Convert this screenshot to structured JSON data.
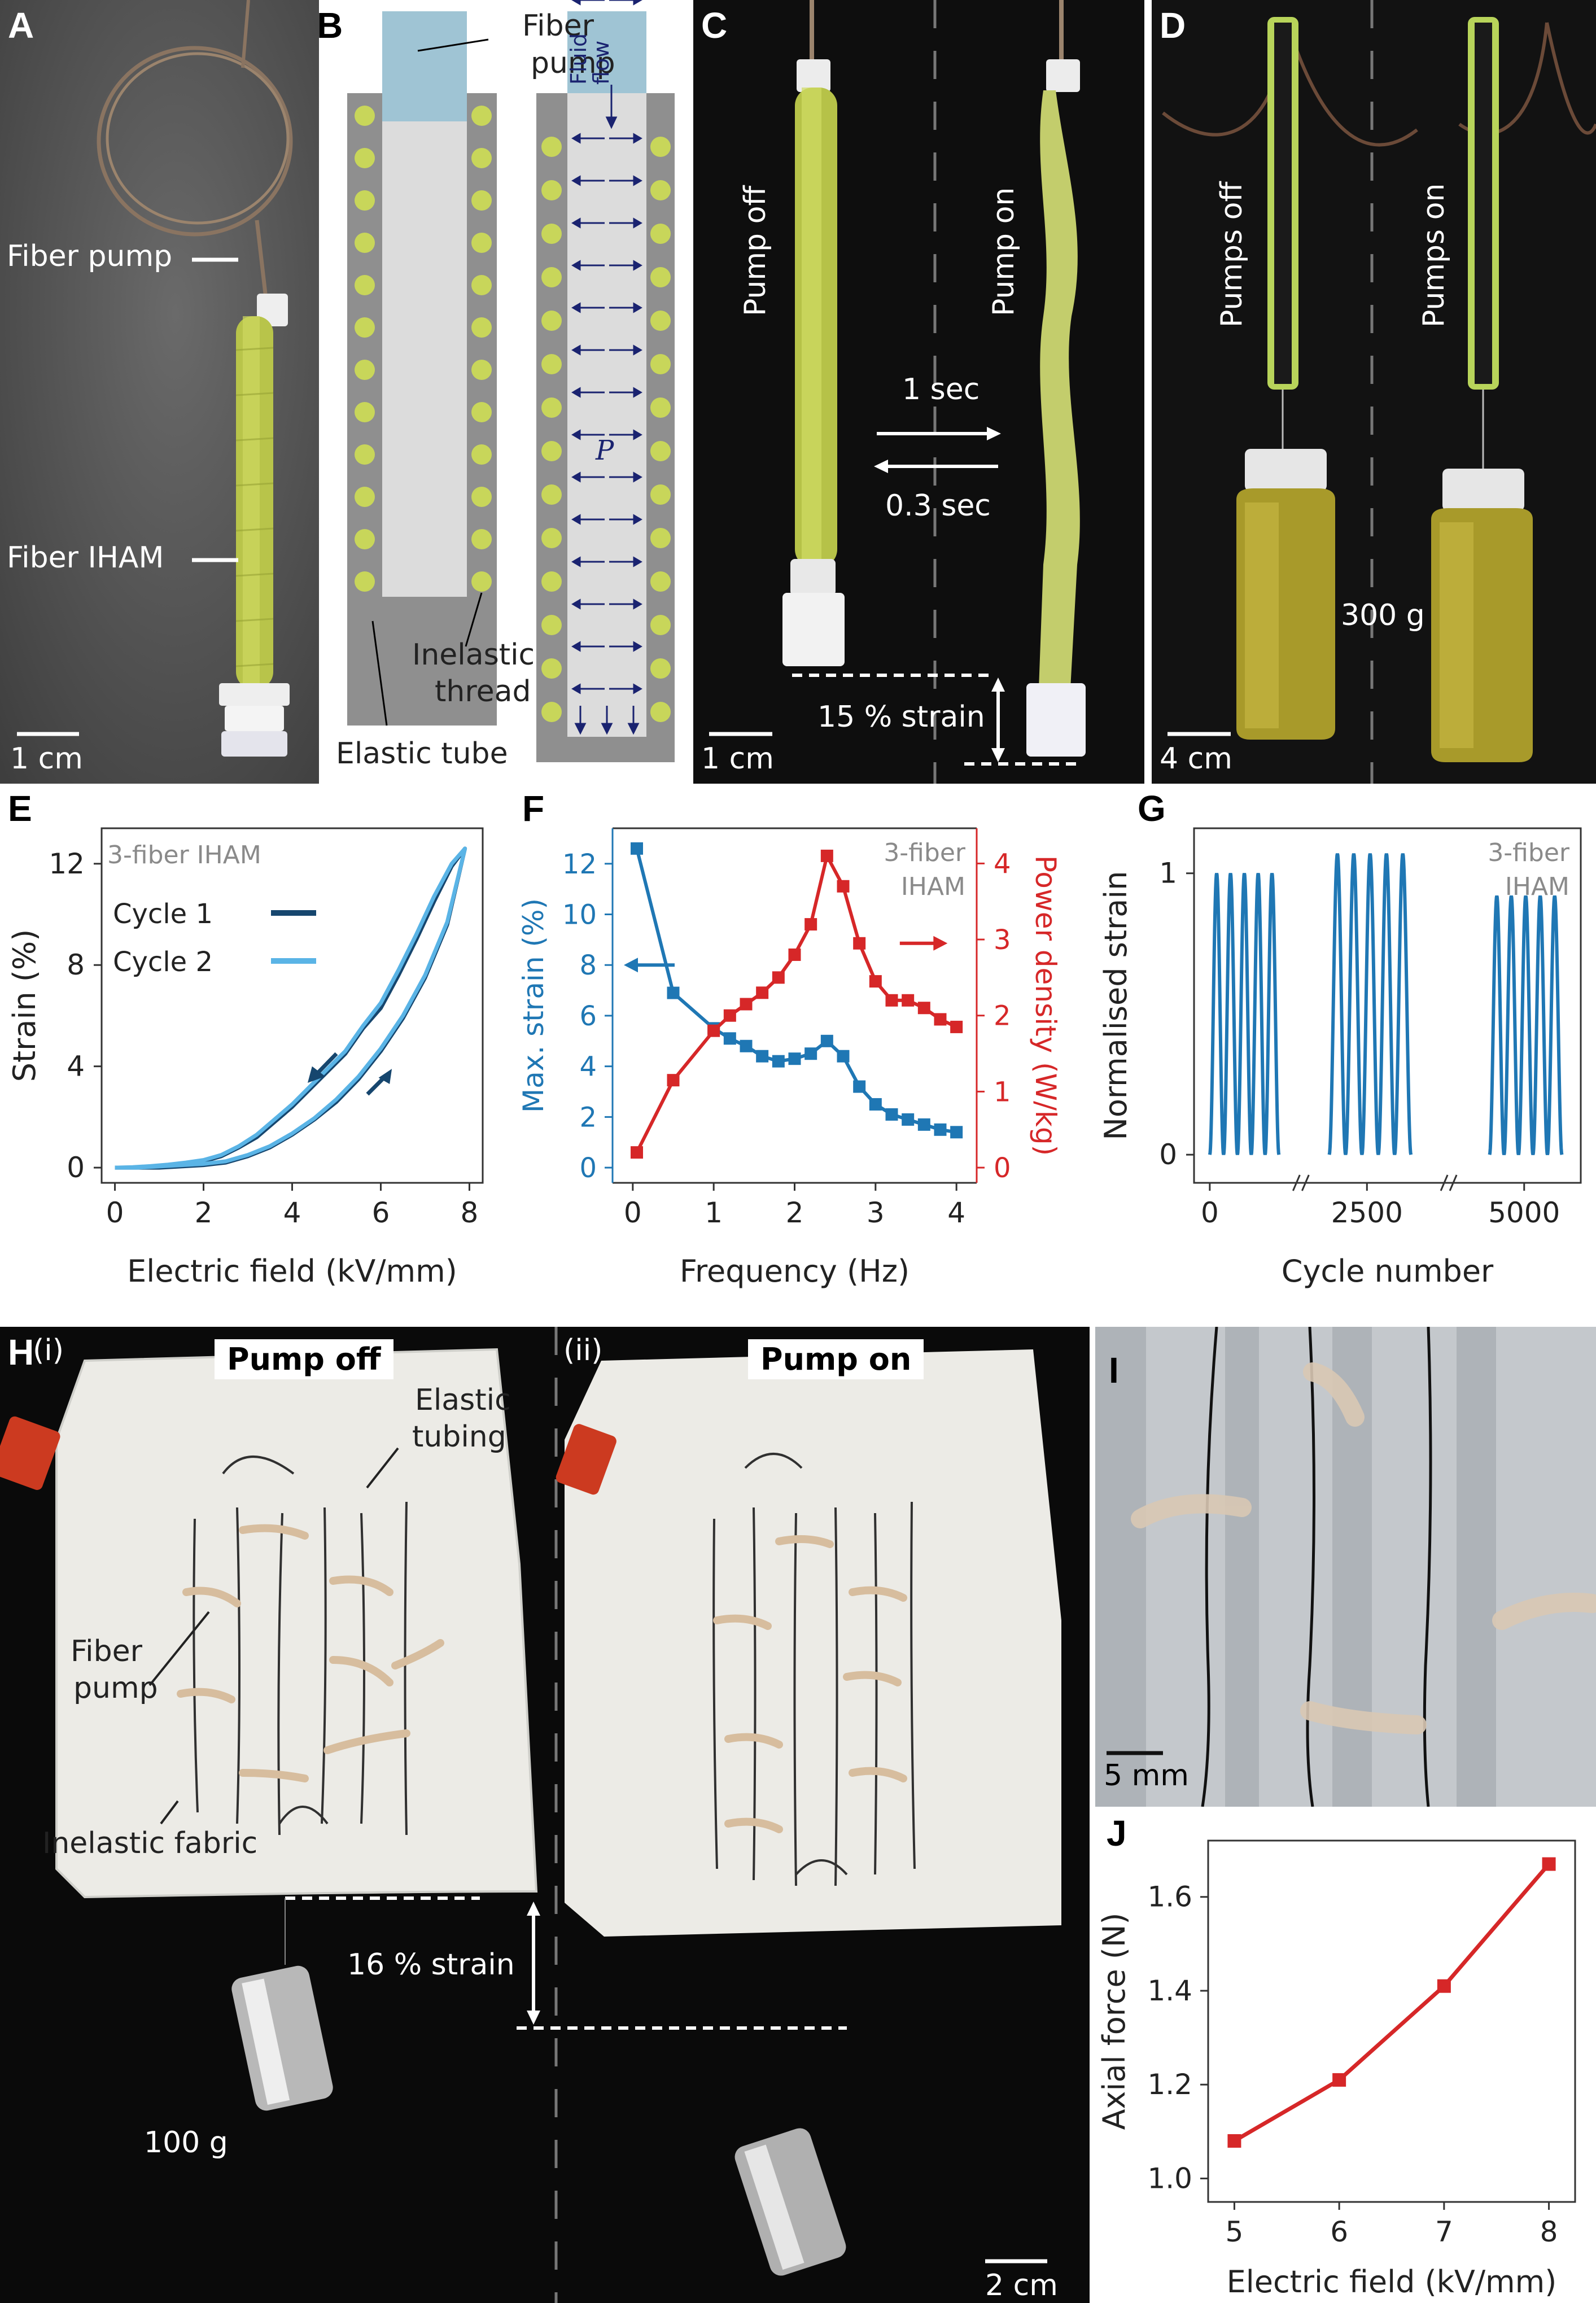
{
  "panels": {
    "A": {
      "label": "A",
      "fiber_pump": "Fiber pump",
      "fiber_iham": "Fiber IHAM",
      "scale": "1 cm"
    },
    "B": {
      "label": "B",
      "fiber_pump": [
        "Fiber",
        "pump"
      ],
      "fluid_flow": [
        "Fluid",
        "flow"
      ],
      "pressure": "P",
      "inelastic_thread": [
        "Inelastic",
        "thread"
      ],
      "elastic_tube": "Elastic tube"
    },
    "C": {
      "label": "C",
      "pump_off": "Pump off",
      "pump_on": "Pump on",
      "time_on": "1 sec",
      "time_off": "0.3 sec",
      "strain": "15 % strain",
      "scale": "1 cm"
    },
    "D": {
      "label": "D",
      "pumps_off": "Pumps off",
      "pumps_on": "Pumps on",
      "mass": "300 g",
      "scale": "4 cm"
    },
    "H": {
      "label": "H",
      "sub_i": "(i)",
      "sub_ii": "(ii)",
      "pump_off": "Pump off",
      "pump_on": "Pump on",
      "elastic_tubing": [
        "Elastic",
        "tubing"
      ],
      "fiber_pump": [
        "Fiber",
        "pump"
      ],
      "inelastic_fabric": "Inelastic fabric",
      "strain": "16 % strain",
      "mass": "100 g",
      "scale": "2 cm"
    },
    "I": {
      "label": "I",
      "scale": "5 mm"
    }
  },
  "colors": {
    "fiber": "#c8d65a",
    "tube_gray": "#8f8f8f",
    "fluid": "#dcdcdc",
    "pump_blue": "#9fc4d4",
    "arrow_navy": "#1a2370",
    "strain_blue": "#1f77b4",
    "power_red": "#d62728",
    "dark_navy": "#16466e",
    "light_blue": "#5ab4e6",
    "label_gray": "#8a8a8a"
  },
  "chart_data": [
    {
      "id": "E",
      "label": "E",
      "type": "line",
      "annotation": "3-fiber IHAM",
      "xlabel": "Electric field (kV/mm)",
      "ylabel": "Strain (%)",
      "xlim": [
        0,
        8
      ],
      "ylim": [
        0,
        13
      ],
      "xticks": [
        0,
        2,
        4,
        6,
        8
      ],
      "yticks": [
        0,
        4,
        8,
        12
      ],
      "series": [
        {
          "name": "Cycle 1",
          "color": "#16466e",
          "x": [
            0,
            0.5,
            1,
            1.5,
            2,
            2.5,
            3,
            3.5,
            4,
            4.5,
            5,
            5.5,
            6,
            6.5,
            7,
            7.5,
            7.9,
            7.6,
            7.2,
            6.8,
            6.4,
            6,
            5.6,
            5.2,
            4.8,
            4.4,
            4,
            3.6,
            3.2,
            2.8,
            2.4,
            2,
            1.6,
            1.2,
            0.8,
            0.4,
            0
          ],
          "y": [
            0,
            0,
            0,
            0.05,
            0.1,
            0.2,
            0.45,
            0.8,
            1.3,
            1.9,
            2.6,
            3.5,
            4.6,
            5.9,
            7.5,
            9.6,
            12.6,
            11.9,
            10.5,
            9.0,
            7.6,
            6.3,
            5.5,
            4.5,
            3.8,
            3.1,
            2.4,
            1.8,
            1.2,
            0.8,
            0.45,
            0.25,
            0.15,
            0.1,
            0.05,
            0,
            0
          ]
        },
        {
          "name": "Cycle 2",
          "color": "#5ab4e6",
          "x": [
            0,
            0.5,
            1,
            1.5,
            2,
            2.5,
            3,
            3.5,
            4,
            4.5,
            5,
            5.5,
            6,
            6.5,
            7,
            7.5,
            7.9,
            7.6,
            7.2,
            6.8,
            6.4,
            6,
            5.6,
            5.2,
            4.8,
            4.4,
            4,
            3.6,
            3.2,
            2.8,
            2.4,
            2,
            1.6,
            1.2,
            0.8,
            0.4,
            0
          ],
          "y": [
            0,
            0,
            0.05,
            0.1,
            0.15,
            0.25,
            0.5,
            0.85,
            1.35,
            1.95,
            2.7,
            3.6,
            4.7,
            6.0,
            7.6,
            9.7,
            12.6,
            12.0,
            10.7,
            9.2,
            7.8,
            6.5,
            5.6,
            4.6,
            3.9,
            3.2,
            2.5,
            1.9,
            1.3,
            0.85,
            0.5,
            0.3,
            0.2,
            0.12,
            0.06,
            0.02,
            0
          ]
        }
      ]
    },
    {
      "id": "F",
      "label": "F",
      "type": "line",
      "annotation": [
        "3-fiber",
        "IHAM"
      ],
      "xlabel": "Frequency (Hz)",
      "ylabel_left": "Max. strain (%)",
      "ylabel_right": "Power density (W/kg)",
      "xlim": [
        -0.25,
        4.25
      ],
      "ylim_left": [
        0,
        13
      ],
      "ylim_right": [
        0,
        4.33
      ],
      "xticks": [
        0,
        1,
        2,
        3,
        4
      ],
      "yticks_left": [
        0,
        2,
        4,
        6,
        8,
        10,
        12
      ],
      "yticks_right": [
        0,
        1,
        2,
        3,
        4
      ],
      "series": [
        {
          "name": "Max. strain",
          "axis": "left",
          "color": "#1f77b4",
          "x": [
            0.05,
            0.5,
            1,
            1.2,
            1.4,
            1.6,
            1.8,
            2,
            2.2,
            2.4,
            2.6,
            2.8,
            3,
            3.2,
            3.4,
            3.6,
            3.8,
            4
          ],
          "y": [
            12.6,
            6.9,
            5.5,
            5.1,
            4.8,
            4.4,
            4.2,
            4.3,
            4.5,
            5.0,
            4.4,
            3.2,
            2.5,
            2.1,
            1.9,
            1.7,
            1.5,
            1.4
          ]
        },
        {
          "name": "Power density",
          "axis": "right",
          "color": "#d62728",
          "x": [
            0.05,
            0.5,
            1,
            1.2,
            1.4,
            1.6,
            1.8,
            2,
            2.2,
            2.4,
            2.6,
            2.8,
            3,
            3.2,
            3.4,
            3.6,
            3.8,
            4
          ],
          "y": [
            0.2,
            1.15,
            1.8,
            2.0,
            2.15,
            2.3,
            2.5,
            2.8,
            3.2,
            4.1,
            3.7,
            2.95,
            2.45,
            2.2,
            2.2,
            2.1,
            1.95,
            1.85
          ]
        }
      ]
    },
    {
      "id": "G",
      "label": "G",
      "type": "line",
      "annotation": [
        "3-fiber",
        "IHAM"
      ],
      "xlabel": "Cycle number",
      "ylabel": "Normalised strain",
      "yticks": [
        0,
        1
      ],
      "xticks": [
        "0",
        "2500",
        "5000"
      ],
      "segments": [
        {
          "range": [
            0,
            1100
          ],
          "peaks": 5,
          "amplitude": 1.0
        },
        {
          "range": [
            1900,
            3200
          ],
          "peaks": 5,
          "amplitude": 1.07
        },
        {
          "range": [
            4450,
            5600
          ],
          "peaks": 5,
          "amplitude": 0.92
        }
      ]
    },
    {
      "id": "J",
      "label": "J",
      "type": "line",
      "xlabel": "Electric field (kV/mm)",
      "ylabel": "Axial force (N)",
      "xlim": [
        4.75,
        8.25
      ],
      "ylim": [
        0.95,
        1.72
      ],
      "xticks": [
        5,
        6,
        7,
        8
      ],
      "yticks": [
        1.0,
        1.2,
        1.4,
        1.6
      ],
      "series": [
        {
          "name": "Axial force",
          "color": "#d62728",
          "x": [
            5,
            6,
            7,
            8
          ],
          "y": [
            1.08,
            1.21,
            1.41,
            1.67
          ]
        }
      ]
    }
  ]
}
